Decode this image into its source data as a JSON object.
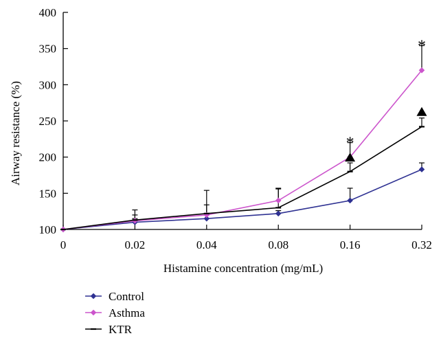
{
  "chart_data": {
    "type": "line",
    "xlabel": "Histamine concentration (mg/mL)",
    "ylabel": "Airway resistance (%)",
    "categories": [
      "0",
      "0.02",
      "0.04",
      "0.08",
      "0.16",
      "0.32"
    ],
    "ylim": [
      100,
      400
    ],
    "yticks": [
      "100",
      "150",
      "200",
      "250",
      "300",
      "350",
      "400"
    ],
    "grid": false,
    "legend_position": "bottom-left",
    "series": [
      {
        "name": "Control",
        "color": "#2e3192",
        "marker": "diamond",
        "values": [
          100,
          110,
          115,
          122,
          140,
          183
        ],
        "errors": [
          0,
          5,
          5,
          4,
          17,
          9
        ]
      },
      {
        "name": "Asthma",
        "color": "#cc55cc",
        "marker": "diamond",
        "values": [
          100,
          112,
          120,
          140,
          200,
          320
        ],
        "errors": [
          0,
          8,
          14,
          17,
          20,
          34
        ]
      },
      {
        "name": "KTR",
        "color": "#000000",
        "marker": "dash",
        "values": [
          100,
          113,
          122,
          130,
          180,
          242
        ],
        "errors": [
          0,
          14,
          32,
          26,
          12,
          12
        ]
      }
    ],
    "annotations": [
      {
        "text": "*",
        "category": "0.16",
        "y": 222
      },
      {
        "text": "*",
        "category": "0.32",
        "y": 356
      },
      {
        "symbol": "triangle",
        "category": "0.16",
        "y": 200
      },
      {
        "symbol": "triangle",
        "category": "0.32",
        "y": 263
      }
    ]
  }
}
